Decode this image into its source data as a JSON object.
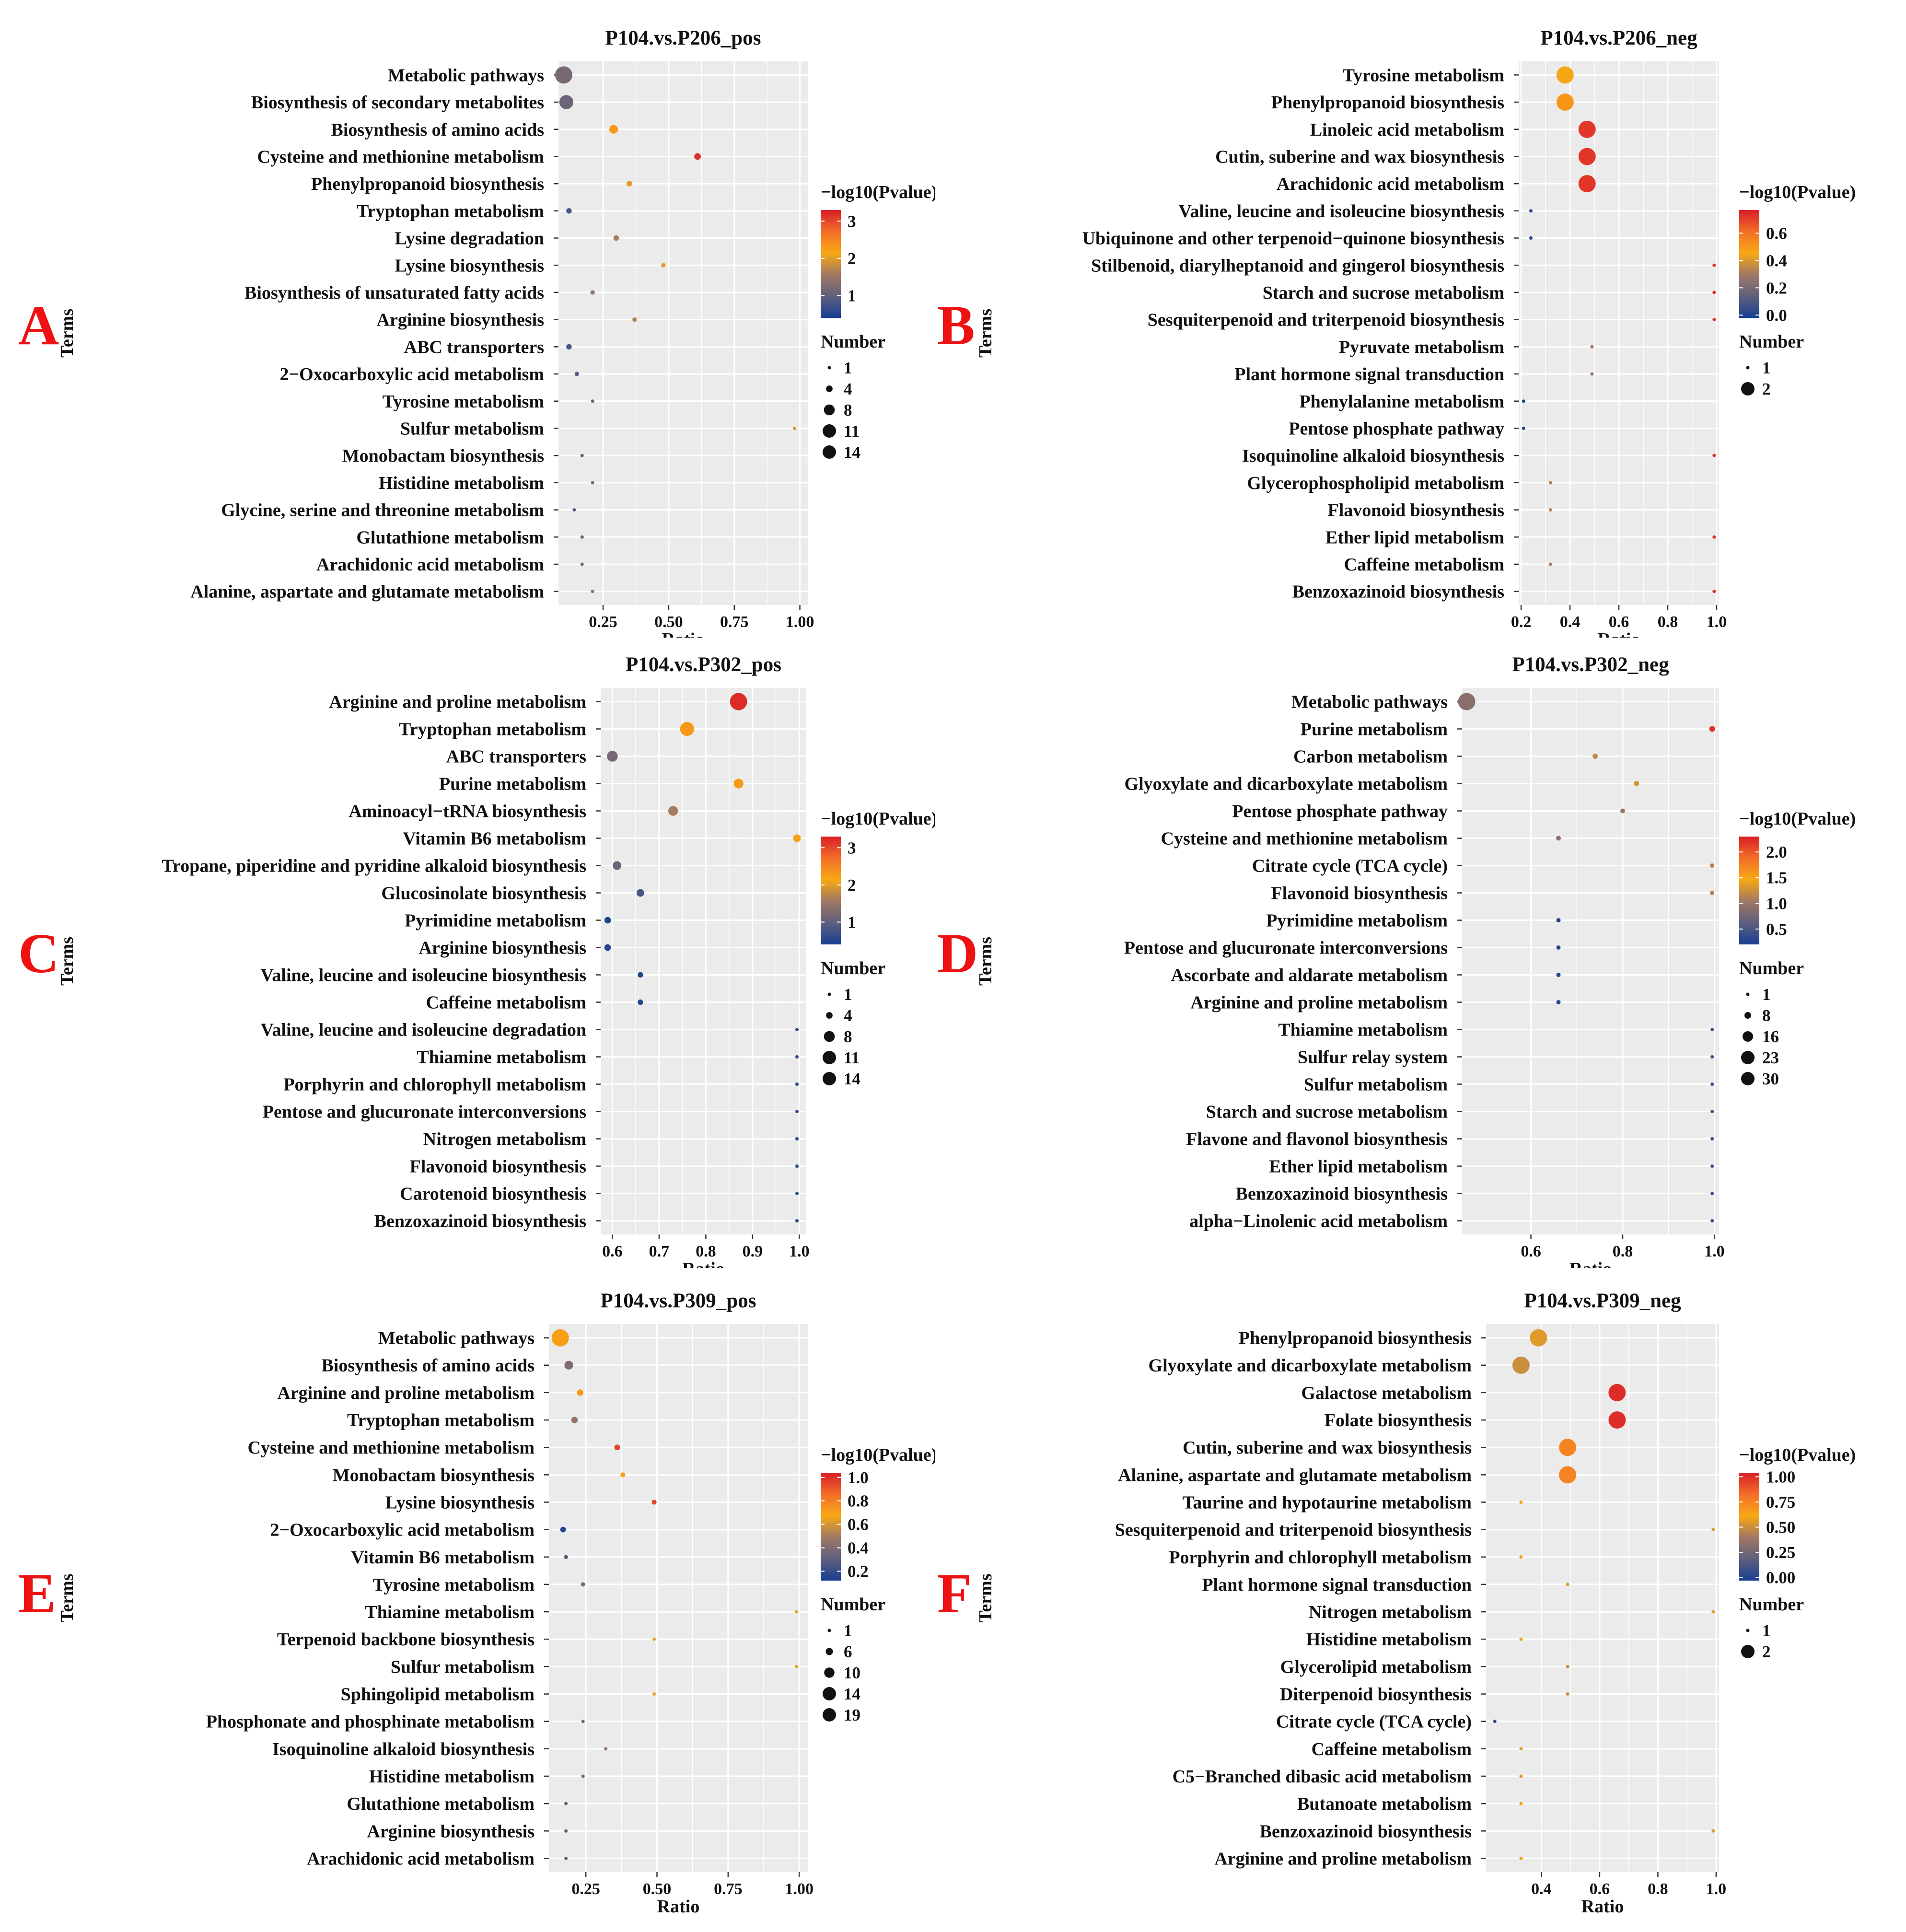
{
  "chart_data": [
    {
      "type": "scatter",
      "panel_label": "A",
      "title": "P104.vs.P206_pos",
      "xlabel": "Ratio",
      "ylabel": "Terms",
      "xlim": [
        0.08,
        1.03
      ],
      "xticks": [
        0.25,
        0.5,
        0.75,
        1.0
      ],
      "xtick_labels": [
        "0.25",
        "0.50",
        "0.75",
        "1.00"
      ],
      "terms": [
        "Metabolic pathways",
        "Biosynthesis of secondary metabolites",
        "Biosynthesis of amino acids",
        "Cysteine and methionine metabolism",
        "Phenylpropanoid biosynthesis",
        "Tryptophan metabolism",
        "Lysine degradation",
        "Lysine biosynthesis",
        "Biosynthesis of unsaturated fatty acids",
        "Arginine biosynthesis",
        "ABC transporters",
        "2−Oxocarboxylic acid metabolism",
        "Tyrosine metabolism",
        "Sulfur metabolism",
        "Monobactam biosynthesis",
        "Histidine metabolism",
        "Glycine, serine and threonine metabolism",
        "Glutathione metabolism",
        "Arachidonic acid metabolism",
        "Alanine, aspartate and glutamate metabolism"
      ],
      "ratio": [
        0.1,
        0.11,
        0.29,
        0.61,
        0.35,
        0.12,
        0.3,
        0.48,
        0.21,
        0.37,
        0.12,
        0.15,
        0.21,
        0.98,
        0.17,
        0.21,
        0.14,
        0.17,
        0.17,
        0.21
      ],
      "neglog10p": [
        1.2,
        1.1,
        2.3,
        3.2,
        2.0,
        0.8,
        1.6,
        2.0,
        1.4,
        1.7,
        0.8,
        0.9,
        1.1,
        1.9,
        1.0,
        1.2,
        0.9,
        1.0,
        1.1,
        1.4
      ],
      "number": [
        14,
        11,
        6,
        4,
        3,
        3,
        3,
        2,
        2,
        2,
        3,
        2,
        1,
        1,
        1,
        1,
        1,
        1,
        1,
        1
      ],
      "color_title": "−log10(Pvalue)",
      "color_range": [
        0.4,
        3.3
      ],
      "color_ticks": [
        1,
        2,
        3
      ],
      "color_tick_labels": [
        "1",
        "2",
        "3"
      ],
      "size_title": "Number",
      "size_range": [
        1,
        14
      ],
      "size_legend": [
        1,
        4,
        8,
        11,
        14
      ],
      "size_legend_labels": [
        "1",
        "4",
        "8",
        "11",
        "14"
      ]
    },
    {
      "type": "scatter",
      "panel_label": "B",
      "title": "P104.vs.P206_neg",
      "xlabel": "Ratio",
      "ylabel": "Terms",
      "xlim": [
        0.19,
        1.01
      ],
      "xticks": [
        0.2,
        0.4,
        0.6,
        0.8,
        1.0
      ],
      "xtick_labels": [
        "0.2",
        "0.4",
        "0.6",
        "0.8",
        "1.0"
      ],
      "terms": [
        "Tyrosine metabolism",
        "Phenylpropanoid biosynthesis",
        "Linoleic acid metabolism",
        "Cutin, suberine and wax biosynthesis",
        "Arachidonic acid metabolism",
        "Valine, leucine and isoleucine biosynthesis",
        "Ubiquinone and other terpenoid−quinone biosynthesis",
        "Stilbenoid, diarylheptanoid and gingerol biosynthesis",
        "Starch and sucrose metabolism",
        "Sesquiterpenoid and triterpenoid biosynthesis",
        "Pyruvate metabolism",
        "Plant hormone signal transduction",
        "Phenylalanine metabolism",
        "Pentose phosphate pathway",
        "Isoquinoline alkaloid biosynthesis",
        "Glycerophospholipid metabolism",
        "Flavonoid biosynthesis",
        "Ether lipid metabolism",
        "Caffeine metabolism",
        "Benzoxazinoid biosynthesis"
      ],
      "ratio": [
        0.38,
        0.38,
        0.47,
        0.47,
        0.47,
        0.24,
        0.24,
        0.99,
        0.99,
        0.99,
        0.49,
        0.49,
        0.21,
        0.21,
        0.99,
        0.32,
        0.32,
        0.99,
        0.32,
        0.99
      ],
      "neglog10p": [
        0.45,
        0.5,
        0.72,
        0.72,
        0.72,
        0.01,
        0.01,
        0.74,
        0.74,
        0.74,
        0.3,
        0.28,
        0.01,
        0.01,
        0.74,
        0.32,
        0.32,
        0.74,
        0.3,
        0.74
      ],
      "number": [
        2,
        2,
        2,
        2,
        2,
        1,
        1,
        1,
        1,
        1,
        1,
        1,
        1,
        1,
        1,
        1,
        1,
        1,
        1,
        1
      ],
      "color_title": "−log10(Pvalue)",
      "color_range": [
        -0.02,
        0.77
      ],
      "color_ticks": [
        0.0,
        0.2,
        0.4,
        0.6
      ],
      "color_tick_labels": [
        "0.0",
        "0.2",
        "0.4",
        "0.6"
      ],
      "size_title": "Number",
      "size_range": [
        1,
        2
      ],
      "size_legend": [
        1,
        2
      ],
      "size_legend_labels": [
        "1",
        "2"
      ]
    },
    {
      "type": "scatter",
      "panel_label": "C",
      "title": "P104.vs.P302_pos",
      "xlabel": "Ratio",
      "ylabel": "Terms",
      "xlim": [
        0.575,
        1.015
      ],
      "xticks": [
        0.6,
        0.7,
        0.8,
        0.9,
        1.0
      ],
      "xtick_labels": [
        "0.6",
        "0.7",
        "0.8",
        "0.9",
        "1.0"
      ],
      "terms": [
        "Arginine and proline metabolism",
        "Tryptophan metabolism",
        "ABC transporters",
        "Purine metabolism",
        "Aminoacyl−tRNA biosynthesis",
        "Vitamin B6 metabolism",
        "Tropane, piperidine and pyridine alkaloid biosynthesis",
        "Glucosinolate biosynthesis",
        "Pyrimidine metabolism",
        "Arginine biosynthesis",
        "Valine, leucine and isoleucine biosynthesis",
        "Caffeine metabolism",
        "Valine, leucine and isoleucine degradation",
        "Thiamine metabolism",
        "Porphyrin and chlorophyll metabolism",
        "Pentose and glucuronate interconversions",
        "Nitrogen metabolism",
        "Flavonoid biosynthesis",
        "Carotenoid biosynthesis",
        "Benzoxazinoid biosynthesis"
      ],
      "ratio": [
        0.87,
        0.76,
        0.6,
        0.87,
        0.73,
        0.995,
        0.61,
        0.66,
        0.59,
        0.59,
        0.66,
        0.66,
        0.995,
        0.995,
        0.995,
        0.995,
        0.995,
        0.995,
        0.995,
        0.995
      ],
      "neglog10p": [
        3.2,
        2.3,
        1.2,
        2.3,
        1.6,
        2.2,
        1.1,
        0.8,
        0.5,
        0.5,
        0.5,
        0.5,
        0.6,
        0.6,
        0.6,
        0.6,
        0.6,
        0.6,
        0.6,
        0.6
      ],
      "number": [
        14,
        11,
        8,
        7,
        7,
        5,
        6,
        5,
        4,
        4,
        3,
        3,
        1,
        1,
        1,
        1,
        1,
        1,
        1,
        1
      ],
      "color_title": "−log10(Pvalue)",
      "color_range": [
        0.4,
        3.3
      ],
      "color_ticks": [
        1,
        2,
        3
      ],
      "color_tick_labels": [
        "1",
        "2",
        "3"
      ],
      "size_title": "Number",
      "size_range": [
        1,
        14
      ],
      "size_legend": [
        1,
        4,
        8,
        11,
        14
      ],
      "size_legend_labels": [
        "1",
        "4",
        "8",
        "11",
        "14"
      ]
    },
    {
      "type": "scatter",
      "panel_label": "D",
      "title": "P104.vs.P302_neg",
      "xlabel": "Ratio",
      "ylabel": "Terms",
      "xlim": [
        0.45,
        1.01
      ],
      "xticks": [
        0.6,
        0.8,
        1.0
      ],
      "xtick_labels": [
        "0.6",
        "0.8",
        "1.0"
      ],
      "terms": [
        "Metabolic pathways",
        "Purine metabolism",
        "Carbon metabolism",
        "Glyoxylate and dicarboxylate metabolism",
        "Pentose phosphate pathway",
        "Cysteine and methionine metabolism",
        "Citrate cycle (TCA cycle)",
        "Flavonoid biosynthesis",
        "Pyrimidine metabolism",
        "Pentose and glucuronate interconversions",
        "Ascorbate and aldarate metabolism",
        "Arginine and proline metabolism",
        "Thiamine metabolism",
        "Sulfur relay system",
        "Sulfur metabolism",
        "Starch and sucrose metabolism",
        "Flavone and flavonol biosynthesis",
        "Ether lipid metabolism",
        "Benzoxazinoid biosynthesis",
        "alpha−Linolenic acid metabolism"
      ],
      "ratio": [
        0.46,
        0.995,
        0.74,
        0.83,
        0.8,
        0.66,
        0.995,
        0.995,
        0.66,
        0.66,
        0.66,
        0.66,
        0.995,
        0.995,
        0.995,
        0.995,
        0.995,
        0.995,
        0.995,
        0.995
      ],
      "neglog10p": [
        0.9,
        2.2,
        1.2,
        1.3,
        1.0,
        0.9,
        1.1,
        1.1,
        0.3,
        0.3,
        0.3,
        0.3,
        0.4,
        0.4,
        0.4,
        0.4,
        0.4,
        0.4,
        0.4,
        0.4
      ],
      "number": [
        30,
        6,
        5,
        5,
        4,
        4,
        3,
        3,
        3,
        3,
        3,
        3,
        1,
        1,
        1,
        1,
        1,
        1,
        1,
        1
      ],
      "color_title": "−log10(Pvalue)",
      "color_range": [
        0.2,
        2.3
      ],
      "color_ticks": [
        0.5,
        1.0,
        1.5,
        2.0
      ],
      "color_tick_labels": [
        "0.5",
        "1.0",
        "1.5",
        "2.0"
      ],
      "size_title": "Number",
      "size_range": [
        1,
        30
      ],
      "size_legend": [
        1,
        8,
        16,
        23,
        30
      ],
      "size_legend_labels": [
        "1",
        "8",
        "16",
        "23",
        "30"
      ]
    },
    {
      "type": "scatter",
      "panel_label": "E",
      "title": "P104.vs.P309_pos",
      "xlabel": "Ratio",
      "ylabel": "Terms",
      "xlim": [
        0.12,
        1.03
      ],
      "xticks": [
        0.25,
        0.5,
        0.75,
        1.0
      ],
      "xtick_labels": [
        "0.25",
        "0.50",
        "0.75",
        "1.00"
      ],
      "terms": [
        "Metabolic pathways",
        "Biosynthesis of amino acids",
        "Arginine and proline metabolism",
        "Tryptophan metabolism",
        "Cysteine and methionine metabolism",
        "Monobactam biosynthesis",
        "Lysine biosynthesis",
        "2−Oxocarboxylic acid metabolism",
        "Vitamin B6 metabolism",
        "Tyrosine metabolism",
        "Thiamine metabolism",
        "Terpenoid backbone biosynthesis",
        "Sulfur metabolism",
        "Sphingolipid metabolism",
        "Phosphonate and phosphinate metabolism",
        "Isoquinoline alkaloid biosynthesis",
        "Histidine metabolism",
        "Glutathione metabolism",
        "Arginine biosynthesis",
        "Arachidonic acid metabolism"
      ],
      "ratio": [
        0.16,
        0.19,
        0.23,
        0.21,
        0.36,
        0.38,
        0.49,
        0.17,
        0.18,
        0.24,
        0.99,
        0.49,
        0.99,
        0.49,
        0.24,
        0.32,
        0.24,
        0.18,
        0.18,
        0.18
      ],
      "neglog10p": [
        0.7,
        0.4,
        0.72,
        0.45,
        0.95,
        0.7,
        0.95,
        0.15,
        0.3,
        0.35,
        0.65,
        0.65,
        0.65,
        0.65,
        0.35,
        0.45,
        0.35,
        0.3,
        0.3,
        0.3
      ],
      "number": [
        19,
        8,
        5,
        5,
        4,
        3,
        3,
        4,
        2,
        2,
        1,
        1,
        1,
        1,
        1,
        1,
        1,
        1,
        1,
        1
      ],
      "color_title": "−log10(Pvalue)",
      "color_range": [
        0.12,
        1.04
      ],
      "color_ticks": [
        0.2,
        0.4,
        0.6,
        0.8,
        1.0
      ],
      "color_tick_labels": [
        "0.2",
        "0.4",
        "0.6",
        "0.8",
        "1.0"
      ],
      "size_title": "Number",
      "size_range": [
        1,
        19
      ],
      "size_legend": [
        1,
        6,
        10,
        14,
        19
      ],
      "size_legend_labels": [
        "1",
        "6",
        "10",
        "14",
        "19"
      ]
    },
    {
      "type": "scatter",
      "panel_label": "F",
      "title": "P104.vs.P309_neg",
      "xlabel": "Ratio",
      "ylabel": "Terms",
      "xlim": [
        0.21,
        1.01
      ],
      "xticks": [
        0.4,
        0.6,
        0.8,
        1.0
      ],
      "xtick_labels": [
        "0.4",
        "0.6",
        "0.8",
        "1.0"
      ],
      "terms": [
        "Phenylpropanoid biosynthesis",
        "Glyoxylate and dicarboxylate metabolism",
        "Galactose metabolism",
        "Folate biosynthesis",
        "Cutin, suberine and wax biosynthesis",
        "Alanine, aspartate and glutamate metabolism",
        "Taurine and hypotaurine metabolism",
        "Sesquiterpenoid and triterpenoid biosynthesis",
        "Porphyrin and chlorophyll metabolism",
        "Plant hormone signal transduction",
        "Nitrogen metabolism",
        "Histidine metabolism",
        "Glycerolipid metabolism",
        "Diterpenoid biosynthesis",
        "Citrate cycle (TCA cycle)",
        "Caffeine metabolism",
        "C5−Branched dibasic acid metabolism",
        "Butanoate metabolism",
        "Benzoxazinoid biosynthesis",
        "Arginine and proline metabolism"
      ],
      "ratio": [
        0.39,
        0.33,
        0.66,
        0.66,
        0.49,
        0.49,
        0.33,
        0.99,
        0.33,
        0.49,
        0.99,
        0.33,
        0.49,
        0.49,
        0.24,
        0.33,
        0.33,
        0.33,
        0.99,
        0.33
      ],
      "neglog10p": [
        0.55,
        0.5,
        1.0,
        1.0,
        0.75,
        0.75,
        0.65,
        0.55,
        0.65,
        0.55,
        0.55,
        0.65,
        0.5,
        0.5,
        0.05,
        0.55,
        0.55,
        0.65,
        0.55,
        0.65
      ],
      "number": [
        2,
        2,
        2,
        2,
        2,
        2,
        1,
        1,
        1,
        1,
        1,
        1,
        1,
        1,
        1,
        1,
        1,
        1,
        1,
        1
      ],
      "color_title": "−log10(Pvalue)",
      "color_range": [
        -0.03,
        1.04
      ],
      "color_ticks": [
        0.0,
        0.25,
        0.5,
        0.75,
        1.0
      ],
      "color_tick_labels": [
        "0.00",
        "0.25",
        "0.50",
        "0.75",
        "1.00"
      ],
      "size_title": "Number",
      "size_range": [
        1,
        2
      ],
      "size_legend": [
        1,
        2
      ],
      "size_legend_labels": [
        "1",
        "2"
      ]
    }
  ]
}
